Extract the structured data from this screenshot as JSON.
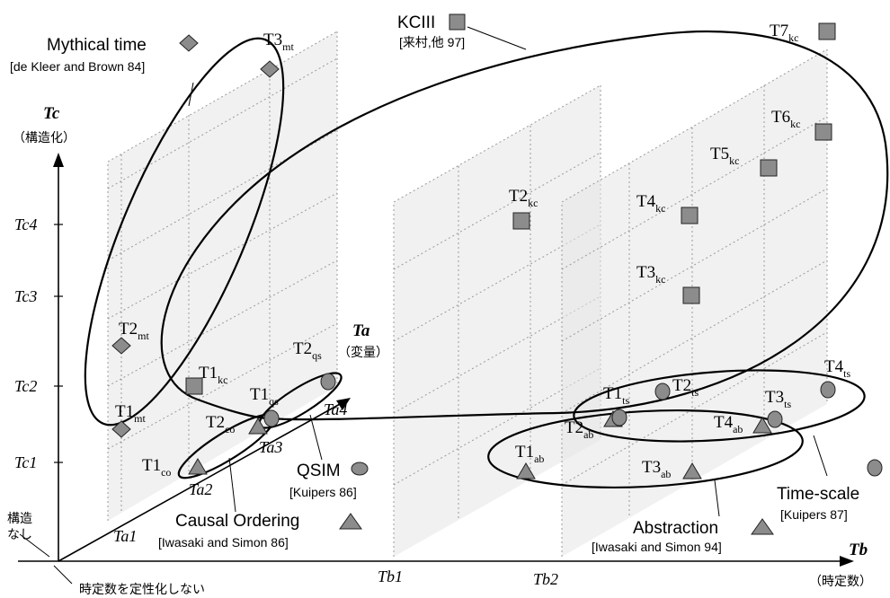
{
  "axes": {
    "tc": {
      "name": "Tc",
      "desc": "（構造化）",
      "ticks": [
        "Tc4",
        "Tc3",
        "Tc2",
        "Tc1"
      ]
    },
    "ta": {
      "name": "Ta",
      "desc": "（変量）",
      "ticks": [
        "Ta1",
        "Ta2",
        "Ta3",
        "Ta4"
      ]
    },
    "tb": {
      "name": "Tb",
      "desc": "（時定数）",
      "ticks": [
        "Tb1",
        "Tb2"
      ]
    },
    "origin_tc": "構造\nなし",
    "origin_tb": "時定数を定性化しない"
  },
  "groups": {
    "mythical": {
      "title": "Mythical time",
      "ref": "[de Kleer and Brown 84]",
      "marker": "diamond"
    },
    "kciii": {
      "title": "KCIII",
      "ref": "[来村,他 97]",
      "marker": "square"
    },
    "qsim": {
      "title": "QSIM",
      "ref": "[Kuipers 86]",
      "marker": "circle"
    },
    "causal": {
      "title": "Causal Ordering",
      "ref": "[Iwasaki and Simon 86]",
      "marker": "triangle"
    },
    "abstraction": {
      "title": "Abstraction",
      "ref": "[Iwasaki and Simon 94]",
      "marker": "triangle"
    },
    "timescale": {
      "title": "Time-scale",
      "ref": "[Kuipers 87]",
      "marker": "circle"
    }
  },
  "points": {
    "mt": [
      {
        "base": "T1",
        "sub": "mt"
      },
      {
        "base": "T2",
        "sub": "mt"
      },
      {
        "base": "T3",
        "sub": "mt"
      }
    ],
    "kc": [
      {
        "base": "T1",
        "sub": "kc"
      },
      {
        "base": "T2",
        "sub": "kc"
      },
      {
        "base": "T3",
        "sub": "kc"
      },
      {
        "base": "T4",
        "sub": "kc"
      },
      {
        "base": "T5",
        "sub": "kc"
      },
      {
        "base": "T6",
        "sub": "kc"
      },
      {
        "base": "T7",
        "sub": "kc"
      }
    ],
    "qs": [
      {
        "base": "T1",
        "sub": "qs"
      },
      {
        "base": "T2",
        "sub": "qs"
      }
    ],
    "co": [
      {
        "base": "T1",
        "sub": "co"
      },
      {
        "base": "T2",
        "sub": "co"
      }
    ],
    "ab": [
      {
        "base": "T1",
        "sub": "ab"
      },
      {
        "base": "T2",
        "sub": "ab"
      },
      {
        "base": "T3",
        "sub": "ab"
      },
      {
        "base": "T4",
        "sub": "ab"
      }
    ],
    "ts": [
      {
        "base": "T1",
        "sub": "ts"
      },
      {
        "base": "T2",
        "sub": "ts"
      },
      {
        "base": "T3",
        "sub": "ts"
      },
      {
        "base": "T4",
        "sub": "ts"
      }
    ]
  },
  "colors": {
    "marker_fill": "#8c8c8c",
    "plane_fill": "#e6e6e6",
    "line": "#000000"
  }
}
